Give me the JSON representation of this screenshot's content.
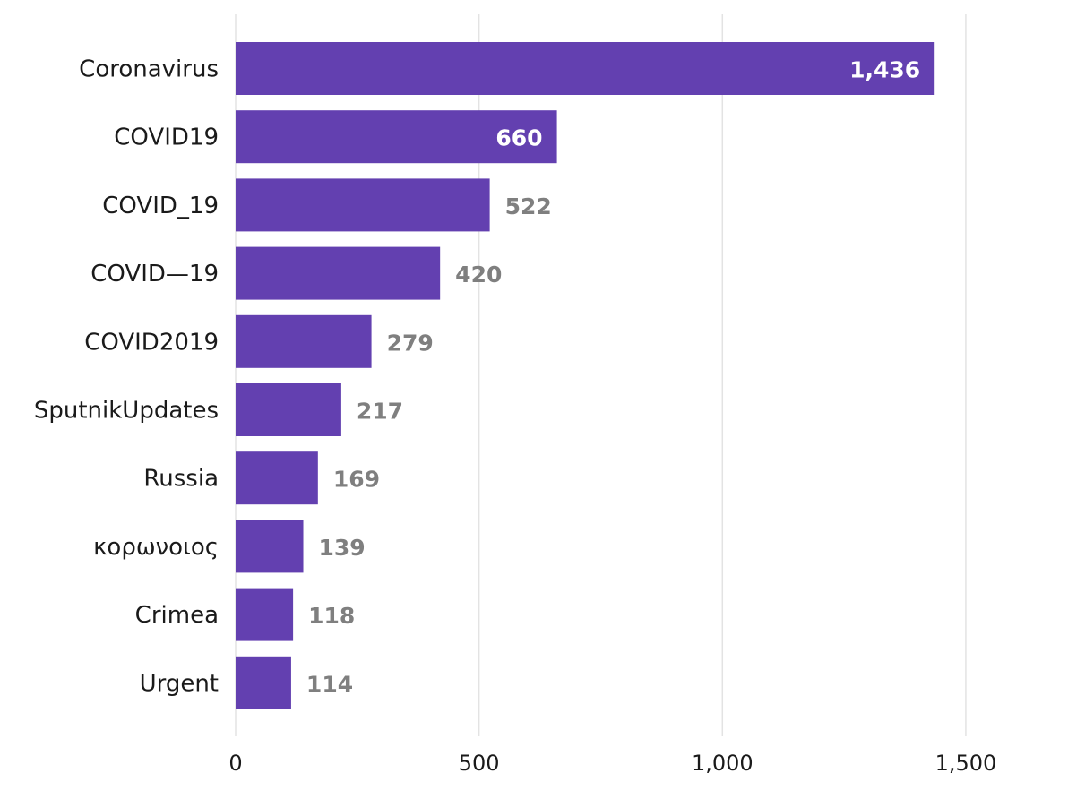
{
  "chart_data": {
    "type": "bar",
    "orientation": "horizontal",
    "categories": [
      "Coronavirus",
      "COVID19",
      "COVID_19",
      "COVID—19",
      "COVID2019",
      "SputnikUpdates",
      "Russia",
      "κορωνοιος",
      "Crimea",
      "Urgent"
    ],
    "values": [
      1436,
      660,
      522,
      420,
      279,
      217,
      169,
      139,
      118,
      114
    ],
    "value_labels": [
      "1,436",
      "660",
      "522",
      "420",
      "279",
      "217",
      "169",
      "139",
      "118",
      "114"
    ],
    "xticks": [
      0,
      500,
      1000,
      1500
    ],
    "xtick_labels": [
      "0",
      "500",
      "1,000",
      "1,500"
    ],
    "xlim": [
      0,
      1500
    ],
    "grid": true,
    "title": "",
    "xlabel": "",
    "ylabel": "",
    "colors": {
      "bar": "#6340b0",
      "value_label_outside": "#7f7f7f",
      "value_label_inside": "#ffffff",
      "grid": "#e3e3e3"
    }
  }
}
